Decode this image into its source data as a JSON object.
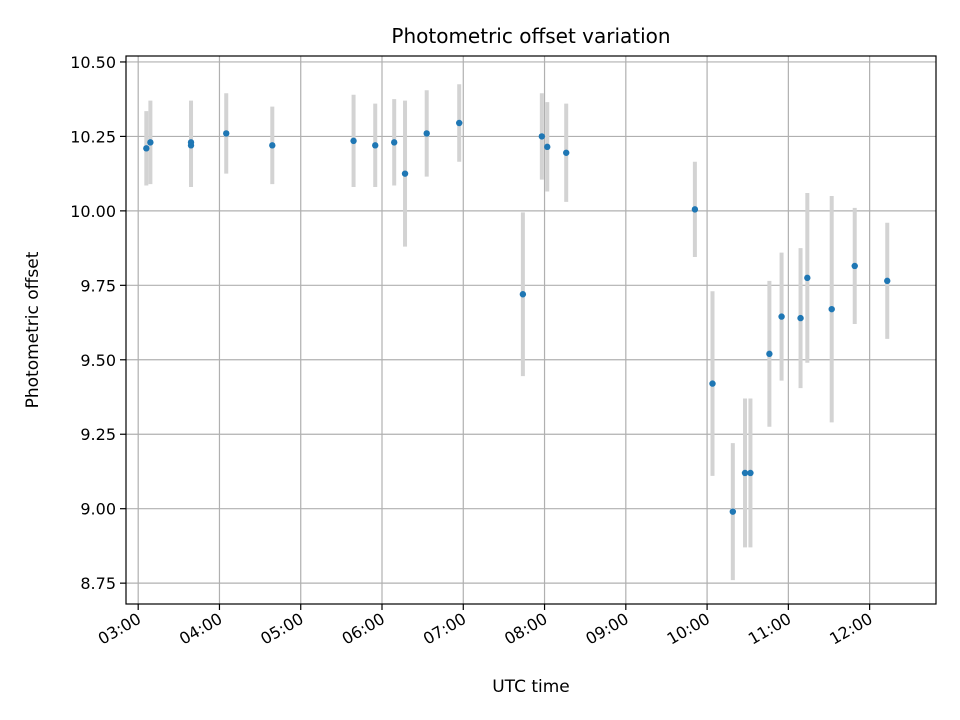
{
  "chart_data": {
    "type": "scatter",
    "title": "Photometric offset variation",
    "xlabel": "UTC time",
    "ylabel": "Photometric offset",
    "x_ticks": [
      "03:00",
      "04:00",
      "05:00",
      "06:00",
      "07:00",
      "08:00",
      "09:00",
      "10:00",
      "11:00",
      "12:00"
    ],
    "y_ticks": [
      "8.75",
      "9.00",
      "9.25",
      "9.50",
      "9.75",
      "10.00",
      "10.25",
      "10.50"
    ],
    "ylim": [
      8.68,
      10.52
    ],
    "xlim": [
      "02:51",
      "12:49"
    ],
    "grid": true,
    "marker_color": "#1f77b4",
    "errorbar_color": "#d3d3d3",
    "points": [
      {
        "x": "03:06",
        "y": 10.21,
        "err": 0.125
      },
      {
        "x": "03:09",
        "y": 10.23,
        "err": 0.14
      },
      {
        "x": "03:39",
        "y": 10.22,
        "err": 0.14
      },
      {
        "x": "03:39",
        "y": 10.23,
        "err": 0.14
      },
      {
        "x": "04:05",
        "y": 10.26,
        "err": 0.135
      },
      {
        "x": "04:39",
        "y": 10.22,
        "err": 0.13
      },
      {
        "x": "05:39",
        "y": 10.235,
        "err": 0.155
      },
      {
        "x": "05:55",
        "y": 10.22,
        "err": 0.14
      },
      {
        "x": "06:09",
        "y": 10.23,
        "err": 0.145
      },
      {
        "x": "06:17",
        "y": 10.125,
        "err": 0.245
      },
      {
        "x": "06:33",
        "y": 10.26,
        "err": 0.145
      },
      {
        "x": "06:57",
        "y": 10.295,
        "err": 0.13
      },
      {
        "x": "07:44",
        "y": 9.72,
        "err": 0.275
      },
      {
        "x": "07:58",
        "y": 10.25,
        "err": 0.145
      },
      {
        "x": "08:02",
        "y": 10.215,
        "err": 0.15
      },
      {
        "x": "08:16",
        "y": 10.195,
        "err": 0.165
      },
      {
        "x": "09:51",
        "y": 10.005,
        "err": 0.16
      },
      {
        "x": "10:04",
        "y": 9.42,
        "err": 0.31
      },
      {
        "x": "10:19",
        "y": 8.99,
        "err": 0.23
      },
      {
        "x": "10:28",
        "y": 9.12,
        "err": 0.25
      },
      {
        "x": "10:32",
        "y": 9.12,
        "err": 0.25
      },
      {
        "x": "10:46",
        "y": 9.52,
        "err": 0.245
      },
      {
        "x": "10:55",
        "y": 9.645,
        "err": 0.215
      },
      {
        "x": "11:09",
        "y": 9.64,
        "err": 0.235
      },
      {
        "x": "11:14",
        "y": 9.775,
        "err": 0.285
      },
      {
        "x": "11:32",
        "y": 9.67,
        "err": 0.38
      },
      {
        "x": "11:49",
        "y": 9.815,
        "err": 0.195
      },
      {
        "x": "12:13",
        "y": 9.765,
        "err": 0.195
      }
    ]
  }
}
